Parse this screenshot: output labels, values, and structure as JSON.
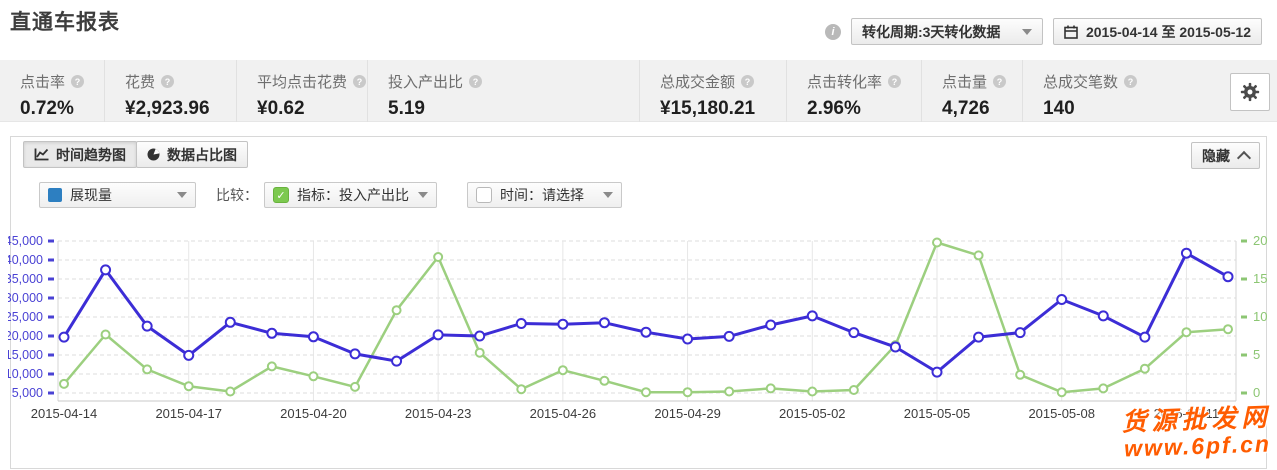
{
  "header": {
    "title": "直通车报表",
    "info_icon_glyph": "i",
    "period_dropdown": {
      "label": "转化周期:3天转化数据"
    },
    "date_range": {
      "label": "2015-04-14 至 2015-05-12"
    }
  },
  "stats": {
    "help_glyph": "?",
    "items": [
      {
        "label": "点击率",
        "value": "0.72%"
      },
      {
        "label": "花费",
        "value": "¥2,923.96"
      },
      {
        "label": "平均点击花费",
        "value": "¥0.62"
      },
      {
        "label": "投入产出比",
        "value": "5.19"
      },
      {
        "label": "总成交金额",
        "value": "¥15,180.21"
      },
      {
        "label": "点击转化率",
        "value": "2.96%"
      },
      {
        "label": "点击量",
        "value": "4,726"
      },
      {
        "label": "总成交笔数",
        "value": "140"
      }
    ]
  },
  "panel": {
    "tabs": [
      {
        "label": "时间趋势图",
        "active": true
      },
      {
        "label": "数据占比图",
        "active": false
      }
    ],
    "hide_button": {
      "label": "隐藏"
    },
    "controls": {
      "metric_select": {
        "label": "展现量",
        "swatch_color": "#2d7fc1"
      },
      "compare_label": "比较：",
      "indicator_select": {
        "label": "指标：投入产出比",
        "checked": true,
        "check_glyph": "✓",
        "check_color": "#7cc94f"
      },
      "time_select": {
        "label": "时间：请选择",
        "checked": false
      }
    }
  },
  "chart_data": {
    "type": "line",
    "x": [
      "2015-04-14",
      "2015-04-15",
      "2015-04-16",
      "2015-04-17",
      "2015-04-18",
      "2015-04-19",
      "2015-04-20",
      "2015-04-21",
      "2015-04-22",
      "2015-04-23",
      "2015-04-24",
      "2015-04-25",
      "2015-04-26",
      "2015-04-27",
      "2015-04-28",
      "2015-04-29",
      "2015-04-30",
      "2015-05-01",
      "2015-05-02",
      "2015-05-03",
      "2015-05-04",
      "2015-05-05",
      "2015-05-06",
      "2015-05-07",
      "2015-05-08",
      "2015-05-09",
      "2015-05-10",
      "2015-05-11",
      "2015-05-12"
    ],
    "x_tick_every": 3,
    "series": [
      {
        "name": "投入产出比",
        "axis": "right",
        "color": "#9ccf7f",
        "values": [
          1.2,
          7.7,
          3.1,
          0.9,
          0.2,
          3.5,
          2.2,
          0.8,
          10.9,
          17.9,
          5.3,
          0.5,
          3.0,
          1.6,
          0.1,
          0.1,
          0.2,
          0.6,
          0.2,
          0.4,
          6.3,
          19.8,
          18.1,
          2.4,
          0.1,
          0.6,
          3.2,
          8.0,
          8.4
        ]
      },
      {
        "name": "展现量",
        "axis": "left",
        "color": "#3c2dd6",
        "values": [
          19700,
          37400,
          22600,
          14900,
          23600,
          20700,
          19800,
          15300,
          13400,
          20300,
          20000,
          23300,
          23100,
          23500,
          21000,
          19200,
          19900,
          22900,
          25300,
          20900,
          17100,
          10500,
          19700,
          20900,
          29600,
          25300,
          19700,
          41800,
          35600
        ]
      }
    ],
    "y_left": {
      "min": 5000,
      "max": 45000,
      "tick_step": 5000,
      "label_color": "#4a42d4",
      "ticks": [
        "45,000",
        "40,000",
        "35,000",
        "30,000",
        "25,000",
        "20,000",
        "15,000",
        "10,000",
        "5,000"
      ]
    },
    "y_right": {
      "min": 0,
      "max": 20,
      "tick_step": 5,
      "label_color": "#8cc673",
      "ticks": [
        "20",
        "15",
        "10",
        "5",
        "0"
      ]
    },
    "grid": "dashed-horizontal",
    "legend_position": "none"
  },
  "watermark": {
    "line1": "货源批发网",
    "line2": "www.6pf.cn",
    "color": "#ff5c00"
  }
}
